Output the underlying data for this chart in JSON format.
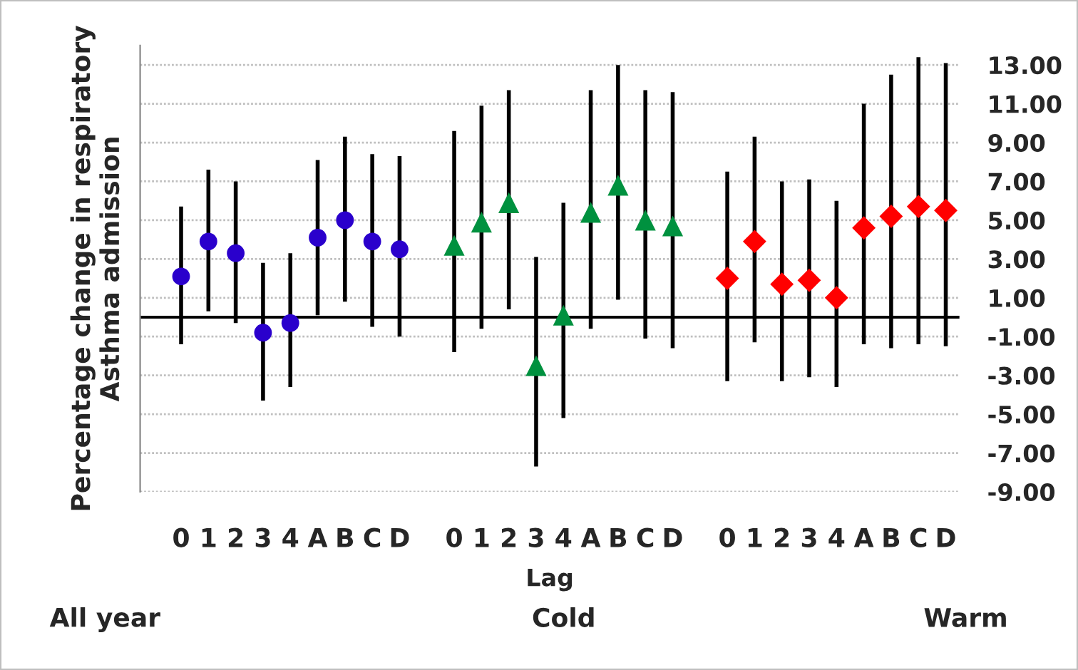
{
  "chart_data": {
    "type": "scatter",
    "xlabel": "Lag",
    "ylabel": "Percentage change in respiratory\nAsthma admission",
    "categories": [
      "0",
      "1",
      "2",
      "3",
      "4",
      "A",
      "B",
      "C",
      "D",
      null,
      "0",
      "1",
      "2",
      "3",
      "4",
      "A",
      "B",
      "C",
      "D",
      null,
      "0",
      "1",
      "2",
      "3",
      "4",
      "A",
      "B",
      "C",
      "D"
    ],
    "series": [
      {
        "color": "#2a00cc",
        "marker": "circle",
        "values": [
          2.1,
          3.9,
          3.3,
          -0.8,
          -0.3,
          4.1,
          5.0,
          3.9,
          3.5,
          null,
          null,
          null,
          null,
          null,
          null,
          null,
          null,
          null,
          null,
          null,
          null,
          null,
          null,
          null,
          null,
          null,
          null,
          null,
          null
        ],
        "errors": [
          [
            -1.4,
            5.7
          ],
          [
            0.3,
            7.6
          ],
          [
            -0.3,
            7.0
          ],
          [
            -4.3,
            2.8
          ],
          [
            -3.6,
            3.3
          ],
          [
            0.1,
            8.1
          ],
          [
            0.8,
            9.3
          ],
          [
            -0.5,
            8.4
          ],
          [
            -1.0,
            8.3
          ],
          null,
          null,
          null,
          null,
          null,
          null,
          null,
          null,
          null,
          null,
          null,
          null,
          null,
          null,
          null,
          null,
          null,
          null,
          null,
          null
        ]
      },
      {
        "color": "#00913f",
        "marker": "triangle",
        "values": [
          null,
          null,
          null,
          null,
          null,
          null,
          null,
          null,
          null,
          null,
          3.7,
          4.9,
          5.9,
          -2.5,
          0.1,
          5.4,
          6.8,
          5.0,
          4.7,
          null,
          null,
          null,
          null,
          null,
          null,
          null,
          null,
          null,
          null
        ],
        "errors": [
          null,
          null,
          null,
          null,
          null,
          null,
          null,
          null,
          null,
          null,
          [
            -1.8,
            9.6
          ],
          [
            -0.6,
            10.9
          ],
          [
            0.4,
            11.7
          ],
          [
            -7.7,
            3.1
          ],
          [
            -5.2,
            5.9
          ],
          [
            -0.6,
            11.7
          ],
          [
            0.9,
            13.0
          ],
          [
            -1.1,
            11.7
          ],
          [
            -1.6,
            11.6
          ],
          null,
          null,
          null,
          null,
          null,
          null,
          null,
          null,
          null,
          null
        ]
      },
      {
        "color": "#ff0000",
        "marker": "diamond",
        "values": [
          null,
          null,
          null,
          null,
          null,
          null,
          null,
          null,
          null,
          null,
          null,
          null,
          null,
          null,
          null,
          null,
          null,
          null,
          null,
          null,
          2.0,
          3.9,
          1.7,
          1.9,
          1.0,
          4.6,
          5.2,
          5.7,
          5.5
        ],
        "errors": [
          null,
          null,
          null,
          null,
          null,
          null,
          null,
          null,
          null,
          null,
          null,
          null,
          null,
          null,
          null,
          null,
          null,
          null,
          null,
          null,
          [
            -3.3,
            7.5
          ],
          [
            -1.3,
            9.3
          ],
          [
            -3.3,
            7.0
          ],
          [
            -3.1,
            7.1
          ],
          [
            -3.6,
            6.0
          ],
          [
            -1.4,
            11.0
          ],
          [
            -1.6,
            12.5
          ],
          [
            -1.4,
            13.4
          ],
          [
            -1.5,
            13.1
          ]
        ]
      }
    ],
    "ylim": [
      -9,
      14
    ],
    "yticks": [
      {
        "value": -9,
        "label": "-9.00"
      },
      {
        "value": -7,
        "label": "-7.00"
      },
      {
        "value": -5,
        "label": "-5.00"
      },
      {
        "value": -3,
        "label": "-3.00"
      },
      {
        "value": -1,
        "label": "-1.00"
      },
      {
        "value": 1,
        "label": "1.00"
      },
      {
        "value": 3,
        "label": "3.00"
      },
      {
        "value": 5,
        "label": "5.00"
      },
      {
        "value": 7,
        "label": "7.00"
      },
      {
        "value": 9,
        "label": "9.00"
      },
      {
        "value": 11,
        "label": "11.00"
      },
      {
        "value": 13,
        "label": "13.00"
      }
    ],
    "grid": "y",
    "legend": false,
    "ref_lines": [
      {
        "axis": "y",
        "value": 0,
        "label": null,
        "color": "#000000"
      }
    ],
    "annotations": [
      "All year",
      "Cold",
      "Warm"
    ]
  }
}
